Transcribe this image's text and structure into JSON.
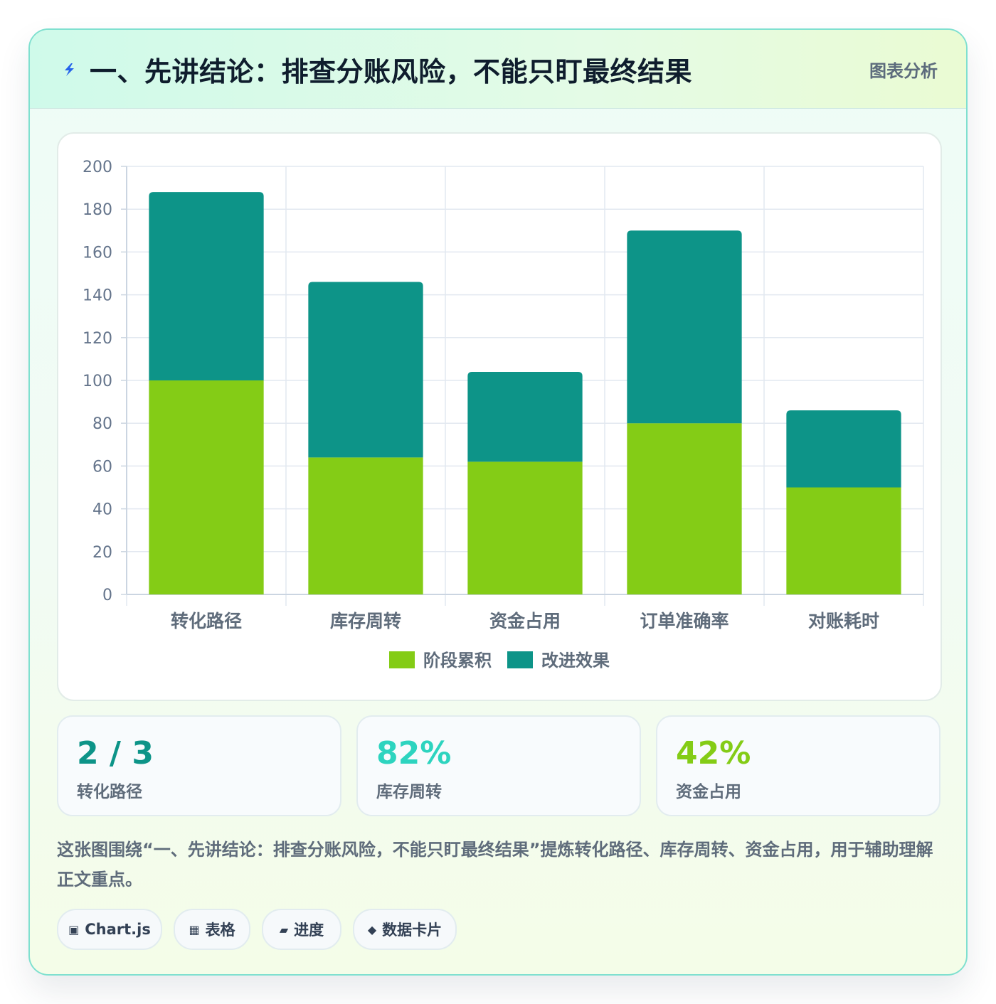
{
  "header": {
    "title": "一、先讲结论：排查分账风险，不能只盯最终结果",
    "tag": "图表分析",
    "icon": "lightning-icon"
  },
  "chart_data": {
    "type": "bar",
    "stacked": true,
    "categories": [
      "转化路径",
      "库存周转",
      "资金占用",
      "订单准确率",
      "对账耗时"
    ],
    "series": [
      {
        "name": "阶段累积",
        "color": "#84cc16",
        "values": [
          100,
          64,
          62,
          80,
          50
        ]
      },
      {
        "name": "改进效果",
        "color": "#0d9488",
        "values": [
          88,
          82,
          42,
          90,
          36
        ]
      }
    ],
    "ylim": [
      0,
      200
    ],
    "yticks": [
      0,
      20,
      40,
      60,
      80,
      100,
      120,
      140,
      160,
      180,
      200
    ],
    "grid": true,
    "legend": "bottom"
  },
  "stats": [
    {
      "value": "2 / 3",
      "label": "转化路径",
      "color": "#0d9488"
    },
    {
      "value": "82%",
      "label": "库存周转",
      "color": "#2dd4bf"
    },
    {
      "value": "42%",
      "label": "资金占用",
      "color": "#84cc16"
    }
  ],
  "description": "这张图围绕“一、先讲结论：排查分账风险，不能只盯最终结果”提炼转化路径、库存周转、资金占用，用于辅助理解正文重点。",
  "pills": [
    {
      "icon": "▣",
      "label": "Chart.js"
    },
    {
      "icon": "▦",
      "label": "表格"
    },
    {
      "icon": "▰",
      "label": "进度"
    },
    {
      "icon": "◆",
      "label": "数据卡片"
    }
  ]
}
